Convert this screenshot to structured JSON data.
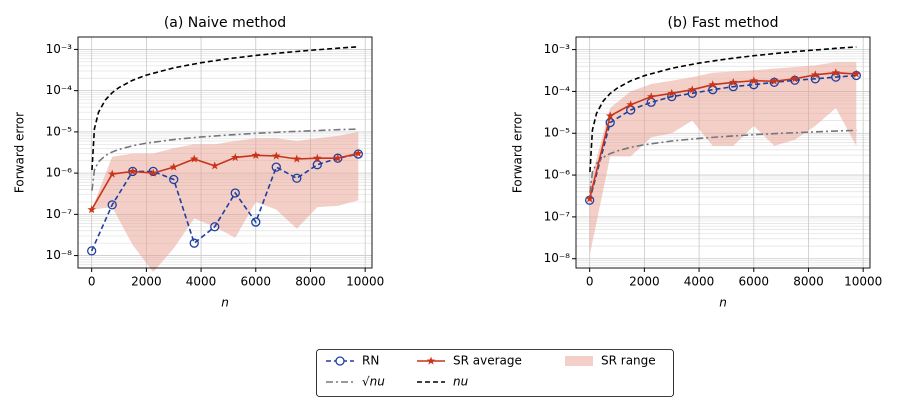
{
  "chart_data": [
    {
      "type": "line",
      "title": "(a) Naive method",
      "xlabel": "n",
      "ylabel": "Forward error",
      "log_y": true,
      "grid": true,
      "minor_grid": true,
      "xlim": [
        -500,
        10250
      ],
      "xticks": [
        0,
        2000,
        4000,
        6000,
        8000,
        10000
      ],
      "ylim": [
        5e-09,
        0.002
      ],
      "yticks": [
        {
          "value": 1e-08,
          "label": "10⁻⁸"
        },
        {
          "value": 1e-07,
          "label": "10⁻⁷"
        },
        {
          "value": 1e-06,
          "label": "10⁻⁶"
        },
        {
          "value": 1e-05,
          "label": "10⁻⁵"
        },
        {
          "value": 0.0001,
          "label": "10⁻⁴"
        },
        {
          "value": 0.001,
          "label": "10⁻³"
        }
      ],
      "series": [
        {
          "name": "RN",
          "color": "#1f3f9f",
          "style": "dashed-circle",
          "x": [
            0,
            750,
            1500,
            2250,
            3000,
            3750,
            4500,
            5250,
            6000,
            6750,
            7500,
            8250,
            9000,
            9750
          ],
          "values": [
            1.3e-08,
            1.7e-07,
            1.1e-06,
            1.1e-06,
            7e-07,
            2e-08,
            5e-08,
            3.3e-07,
            6.5e-08,
            1.4e-06,
            7.5e-07,
            1.6e-06,
            2.3e-06,
            2.9e-06
          ]
        },
        {
          "name": "√nu",
          "color": "#76767e",
          "style": "dashdot",
          "x": [
            10,
            100,
            250,
            500,
            750,
            1000,
            1500,
            2000,
            3000,
            4000,
            5000,
            6000,
            7000,
            8000,
            9000,
            9750
          ],
          "values": [
            3.76e-07,
            1.19e-06,
            1.88e-06,
            2.66e-06,
            3.26e-06,
            3.76e-06,
            4.61e-06,
            5.32e-06,
            6.52e-06,
            7.53e-06,
            8.41e-06,
            9.22e-06,
            9.96e-06,
            1.06e-05,
            1.13e-05,
            1.17e-05
          ]
        },
        {
          "name": "SR average",
          "color": "#c8341a",
          "style": "solid-star",
          "x": [
            0,
            750,
            1500,
            2250,
            3000,
            3750,
            4500,
            5250,
            6000,
            6750,
            7500,
            8250,
            9000,
            9750
          ],
          "values": [
            1.3e-07,
            9.5e-07,
            1.1e-06,
            1e-06,
            1.4e-06,
            2.2e-06,
            1.5e-06,
            2.4e-06,
            2.7e-06,
            2.6e-06,
            2.2e-06,
            2.3e-06,
            2.3e-06,
            3e-06
          ]
        },
        {
          "name": "nu",
          "color": "#000000",
          "style": "dashed",
          "x": [
            10,
            100,
            250,
            500,
            750,
            1000,
            1500,
            2000,
            3000,
            4000,
            5000,
            6000,
            7000,
            8000,
            9000,
            9750
          ],
          "values": [
            1.19e-06,
            1.19e-05,
            2.98e-05,
            5.95e-05,
            8.93e-05,
            0.000119,
            0.000179,
            0.000238,
            0.000357,
            0.000476,
            0.000595,
            0.000714,
            0.000833,
            0.000952,
            0.00107,
            0.00116
          ]
        },
        {
          "name": "SR range",
          "color": "#e8a090",
          "style": "range",
          "x": [
            0,
            750,
            1500,
            2250,
            3000,
            3750,
            4500,
            5250,
            6000,
            6750,
            7500,
            8250,
            9000,
            9750
          ],
          "low": [
            1.3e-07,
            1.5e-07,
            1.8e-08,
            4e-09,
            1.5e-08,
            8e-08,
            5e-08,
            2.7e-08,
            2e-07,
            1.3e-07,
            4.5e-08,
            1.5e-07,
            1.6e-07,
            2.2e-07
          ],
          "high": [
            1.3e-07,
            2.5e-06,
            3e-06,
            3e-06,
            4e-06,
            5e-06,
            5e-06,
            6e-06,
            7e-06,
            7e-06,
            6e-06,
            7e-06,
            8e-06,
            1e-05
          ]
        }
      ]
    },
    {
      "type": "line",
      "title": "(b) Fast method",
      "xlabel": "n",
      "ylabel": "Forward error",
      "log_y": true,
      "grid": true,
      "minor_grid": true,
      "xlim": [
        -500,
        10250
      ],
      "xticks": [
        0,
        2000,
        4000,
        6000,
        8000,
        10000
      ],
      "ylim": [
        6e-09,
        0.002
      ],
      "yticks": [
        {
          "value": 1e-08,
          "label": "10⁻⁸"
        },
        {
          "value": 1e-07,
          "label": "10⁻⁷"
        },
        {
          "value": 1e-06,
          "label": "10⁻⁶"
        },
        {
          "value": 1e-05,
          "label": "10⁻⁵"
        },
        {
          "value": 0.0001,
          "label": "10⁻⁴"
        },
        {
          "value": 0.001,
          "label": "10⁻³"
        }
      ],
      "series": [
        {
          "color": "#1f3f9f",
          "style": "dashed-circle",
          "x": [
            0,
            750,
            1500,
            2250,
            3000,
            3750,
            4500,
            5250,
            6000,
            6750,
            7500,
            8250,
            9000,
            9750
          ],
          "values": [
            2.5e-07,
            1.8e-05,
            3.6e-05,
            5.5e-05,
            7.5e-05,
            9e-05,
            0.00011,
            0.00013,
            0.000145,
            0.000165,
            0.000185,
            0.0002,
            0.00022,
            0.00024
          ]
        },
        {
          "color": "#76767e",
          "style": "dashdot",
          "x": [
            10,
            100,
            250,
            500,
            750,
            1000,
            1500,
            2000,
            3000,
            4000,
            5000,
            6000,
            7000,
            8000,
            9000,
            9750
          ],
          "values": [
            3.76e-07,
            1.19e-06,
            1.88e-06,
            2.66e-06,
            3.26e-06,
            3.76e-06,
            4.61e-06,
            5.32e-06,
            6.52e-06,
            7.53e-06,
            8.41e-06,
            9.22e-06,
            9.96e-06,
            1.06e-05,
            1.13e-05,
            1.17e-05
          ]
        },
        {
          "color": "#c8341a",
          "style": "solid-star",
          "x": [
            0,
            750,
            1500,
            2250,
            3000,
            3750,
            4500,
            5250,
            6000,
            6750,
            7500,
            8250,
            9000,
            9750
          ],
          "values": [
            2.7e-07,
            2.6e-05,
            4.8e-05,
            7.5e-05,
            9e-05,
            0.00011,
            0.000145,
            0.000165,
            0.00018,
            0.000175,
            0.0002,
            0.00025,
            0.00028,
            0.00026
          ]
        },
        {
          "color": "#000000",
          "style": "dashed",
          "x": [
            10,
            100,
            250,
            500,
            750,
            1000,
            1500,
            2000,
            3000,
            4000,
            5000,
            6000,
            7000,
            8000,
            9000,
            9750
          ],
          "values": [
            1.19e-06,
            1.19e-05,
            2.98e-05,
            5.95e-05,
            8.93e-05,
            0.000119,
            0.000179,
            0.000238,
            0.000357,
            0.000476,
            0.000595,
            0.000714,
            0.000833,
            0.000952,
            0.00107,
            0.00116
          ]
        },
        {
          "color": "#e8a090",
          "style": "range",
          "x": [
            0,
            750,
            1500,
            2250,
            3000,
            3750,
            4500,
            5250,
            6000,
            6750,
            7500,
            8250,
            9000,
            9750
          ],
          "low": [
            1.2e-08,
            2.8e-06,
            2.8e-06,
            8e-06,
            1e-05,
            2e-05,
            5e-06,
            5e-06,
            1.5e-05,
            5e-06,
            7e-06,
            1.5e-05,
            4e-05,
            5e-06
          ],
          "high": [
            6e-07,
            4e-05,
            0.0001,
            0.00015,
            0.00018,
            0.00022,
            0.00028,
            0.0003,
            0.00032,
            0.00035,
            0.00038,
            0.00042,
            0.0005,
            0.0005
          ]
        }
      ]
    }
  ]
}
